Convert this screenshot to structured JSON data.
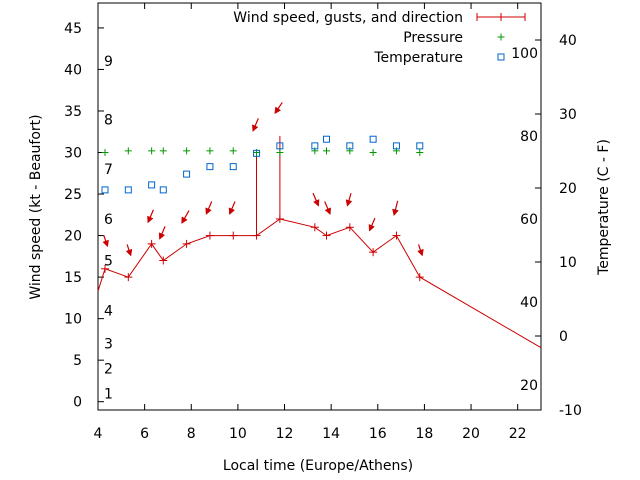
{
  "chart_data": {
    "type": "line",
    "xlabel": "Local time (Europe/Athens)",
    "ylabel_left": "Wind speed (kt - Beaufort)",
    "ylabel_right": "Temperature (C - F)",
    "xlim": [
      4,
      23
    ],
    "ylim_left": [
      -1,
      48
    ],
    "ylim_right": [
      -10,
      45
    ],
    "x_ticks": [
      4,
      6,
      8,
      10,
      12,
      14,
      16,
      18,
      20,
      22
    ],
    "y_ticks_left": [
      0,
      5,
      10,
      15,
      20,
      25,
      30,
      35,
      40,
      45
    ],
    "y_ticks_right": [
      -10,
      0,
      10,
      20,
      30,
      40
    ],
    "beaufort_labels": [
      {
        "text": "1",
        "y": 1
      },
      {
        "text": "2",
        "y": 4
      },
      {
        "text": "3",
        "y": 7
      },
      {
        "text": "4",
        "y": 11
      },
      {
        "text": "5",
        "y": 17
      },
      {
        "text": "6",
        "y": 22
      },
      {
        "text": "7",
        "y": 28
      },
      {
        "text": "8",
        "y": 34
      },
      {
        "text": "9",
        "y": 41
      }
    ],
    "fahrenheit_labels": [
      {
        "text": "20",
        "y": 2
      },
      {
        "text": "40",
        "y": 12
      },
      {
        "text": "60",
        "y": 22
      },
      {
        "text": "80",
        "y": 32
      },
      {
        "text": "100",
        "y": 42
      }
    ],
    "legend": [
      {
        "label": "Wind speed, gusts, and direction",
        "color": "#cc0000",
        "marker": "errorbar"
      },
      {
        "label": "Pressure",
        "color": "#009900",
        "marker": "plus"
      },
      {
        "label": "Temperature",
        "color": "#0066cc",
        "marker": "square"
      }
    ],
    "wind": {
      "color": "#cc0000",
      "line": [
        {
          "x": 4.0,
          "y": 13.3
        },
        {
          "x": 4.3,
          "y": 16
        },
        {
          "x": 5.3,
          "y": 15
        },
        {
          "x": 6.3,
          "y": 19
        },
        {
          "x": 6.8,
          "y": 17
        },
        {
          "x": 7.8,
          "y": 19
        },
        {
          "x": 8.8,
          "y": 20
        },
        {
          "x": 9.8,
          "y": 20
        },
        {
          "x": 10.8,
          "y": 20
        },
        {
          "x": 10.8,
          "y": 30
        },
        {
          "x": 10.8,
          "y": 20
        },
        {
          "x": 11.8,
          "y": 22
        },
        {
          "x": 11.8,
          "y": 32
        },
        {
          "x": 11.8,
          "y": 22
        },
        {
          "x": 13.3,
          "y": 21
        },
        {
          "x": 13.8,
          "y": 20
        },
        {
          "x": 14.8,
          "y": 21
        },
        {
          "x": 15.8,
          "y": 18
        },
        {
          "x": 16.8,
          "y": 20
        },
        {
          "x": 17.8,
          "y": 15
        },
        {
          "x": 23.0,
          "y": 6.5
        }
      ],
      "markers": [
        {
          "x": 4.3,
          "y": 16
        },
        {
          "x": 5.3,
          "y": 15
        },
        {
          "x": 6.3,
          "y": 19
        },
        {
          "x": 6.8,
          "y": 17
        },
        {
          "x": 7.8,
          "y": 19
        },
        {
          "x": 8.8,
          "y": 20
        },
        {
          "x": 9.8,
          "y": 20
        },
        {
          "x": 10.8,
          "y": 20
        },
        {
          "x": 11.8,
          "y": 22
        },
        {
          "x": 13.3,
          "y": 21
        },
        {
          "x": 13.8,
          "y": 20
        },
        {
          "x": 14.8,
          "y": 21
        },
        {
          "x": 15.8,
          "y": 18
        },
        {
          "x": 16.8,
          "y": 20
        },
        {
          "x": 17.8,
          "y": 15
        }
      ],
      "direction_arrows": [
        {
          "x": 4.3,
          "y": 19.6,
          "dx": 2,
          "dy": 6
        },
        {
          "x": 5.3,
          "y": 18.5,
          "dx": 2,
          "dy": 6
        },
        {
          "x": 6.3,
          "y": 22.6,
          "dx": -3,
          "dy": 7
        },
        {
          "x": 6.8,
          "y": 20.6,
          "dx": -3,
          "dy": 7
        },
        {
          "x": 7.8,
          "y": 22.5,
          "dx": -4,
          "dy": 7
        },
        {
          "x": 8.8,
          "y": 23.6,
          "dx": -3,
          "dy": 7
        },
        {
          "x": 9.8,
          "y": 23.6,
          "dx": -3,
          "dy": 7
        },
        {
          "x": 10.8,
          "y": 33.6,
          "dx": -3,
          "dy": 7
        },
        {
          "x": 11.8,
          "y": 35.6,
          "dx": -4,
          "dy": 6
        },
        {
          "x": 13.3,
          "y": 24.6,
          "dx": 3,
          "dy": 7
        },
        {
          "x": 13.8,
          "y": 23.6,
          "dx": 3,
          "dy": 7
        },
        {
          "x": 14.8,
          "y": 24.6,
          "dx": -2,
          "dy": 7
        },
        {
          "x": 15.8,
          "y": 21.6,
          "dx": -3,
          "dy": 7
        },
        {
          "x": 16.8,
          "y": 23.6,
          "dx": -2,
          "dy": 8
        },
        {
          "x": 17.8,
          "y": 18.5,
          "dx": 2,
          "dy": 6
        }
      ]
    },
    "pressure": {
      "color": "#009900",
      "points": [
        {
          "x": 4.3,
          "y": 30
        },
        {
          "x": 5.3,
          "y": 30.2
        },
        {
          "x": 6.3,
          "y": 30.2
        },
        {
          "x": 6.8,
          "y": 30.2
        },
        {
          "x": 7.8,
          "y": 30.2
        },
        {
          "x": 8.8,
          "y": 30.2
        },
        {
          "x": 9.8,
          "y": 30.2
        },
        {
          "x": 10.8,
          "y": 30
        },
        {
          "x": 11.8,
          "y": 30
        },
        {
          "x": 13.3,
          "y": 30.2
        },
        {
          "x": 13.8,
          "y": 30.2
        },
        {
          "x": 14.8,
          "y": 30.2
        },
        {
          "x": 15.8,
          "y": 30
        },
        {
          "x": 16.8,
          "y": 30.2
        },
        {
          "x": 17.8,
          "y": 30
        }
      ]
    },
    "temperature": {
      "color": "#0066cc",
      "points": [
        {
          "x": 4.3,
          "y": 25.5
        },
        {
          "x": 5.3,
          "y": 25.5
        },
        {
          "x": 6.3,
          "y": 26.1
        },
        {
          "x": 6.8,
          "y": 25.5
        },
        {
          "x": 7.8,
          "y": 27.4
        },
        {
          "x": 8.8,
          "y": 28.3
        },
        {
          "x": 9.8,
          "y": 28.3
        },
        {
          "x": 10.8,
          "y": 29.9
        },
        {
          "x": 11.8,
          "y": 30.8
        },
        {
          "x": 13.3,
          "y": 30.8
        },
        {
          "x": 13.8,
          "y": 31.6
        },
        {
          "x": 14.8,
          "y": 30.8
        },
        {
          "x": 15.8,
          "y": 31.6
        },
        {
          "x": 16.8,
          "y": 30.8
        },
        {
          "x": 17.8,
          "y": 30.8
        }
      ]
    }
  }
}
